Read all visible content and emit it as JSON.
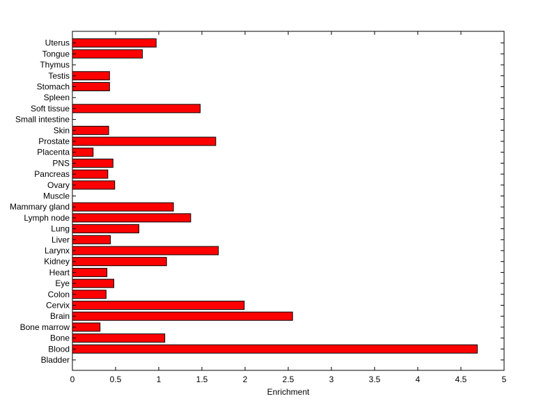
{
  "chart_data": {
    "type": "bar",
    "orientation": "horizontal",
    "title": "",
    "xlabel": "Enrichment",
    "ylabel": "",
    "xlim": [
      0,
      5
    ],
    "xticks": [
      "0",
      "0.5",
      "1",
      "1.5",
      "2",
      "2.5",
      "3",
      "3.5",
      "4",
      "4.5",
      "5"
    ],
    "grid": false,
    "bar_color": "#ff0000",
    "categories": [
      "Bladder",
      "Blood",
      "Bone",
      "Bone marrow",
      "Brain",
      "Cervix",
      "Colon",
      "Eye",
      "Heart",
      "Kidney",
      "Larynx",
      "Liver",
      "Lung",
      "Lymph node",
      "Mammary gland",
      "Muscle",
      "Ovary",
      "Pancreas",
      "PNS",
      "Placenta",
      "Prostate",
      "Skin",
      "Small intestine",
      "Soft tissue",
      "Spleen",
      "Stomach",
      "Testis",
      "Thymus",
      "Tongue",
      "Uterus"
    ],
    "values": [
      0,
      4.69,
      1.07,
      0.32,
      2.55,
      1.99,
      0.39,
      0.48,
      0.4,
      1.09,
      1.69,
      0.44,
      0.77,
      1.37,
      1.17,
      0,
      0.49,
      0.41,
      0.47,
      0.24,
      1.66,
      0.42,
      0,
      1.48,
      0,
      0.43,
      0.43,
      0,
      0.81,
      0.97
    ]
  }
}
